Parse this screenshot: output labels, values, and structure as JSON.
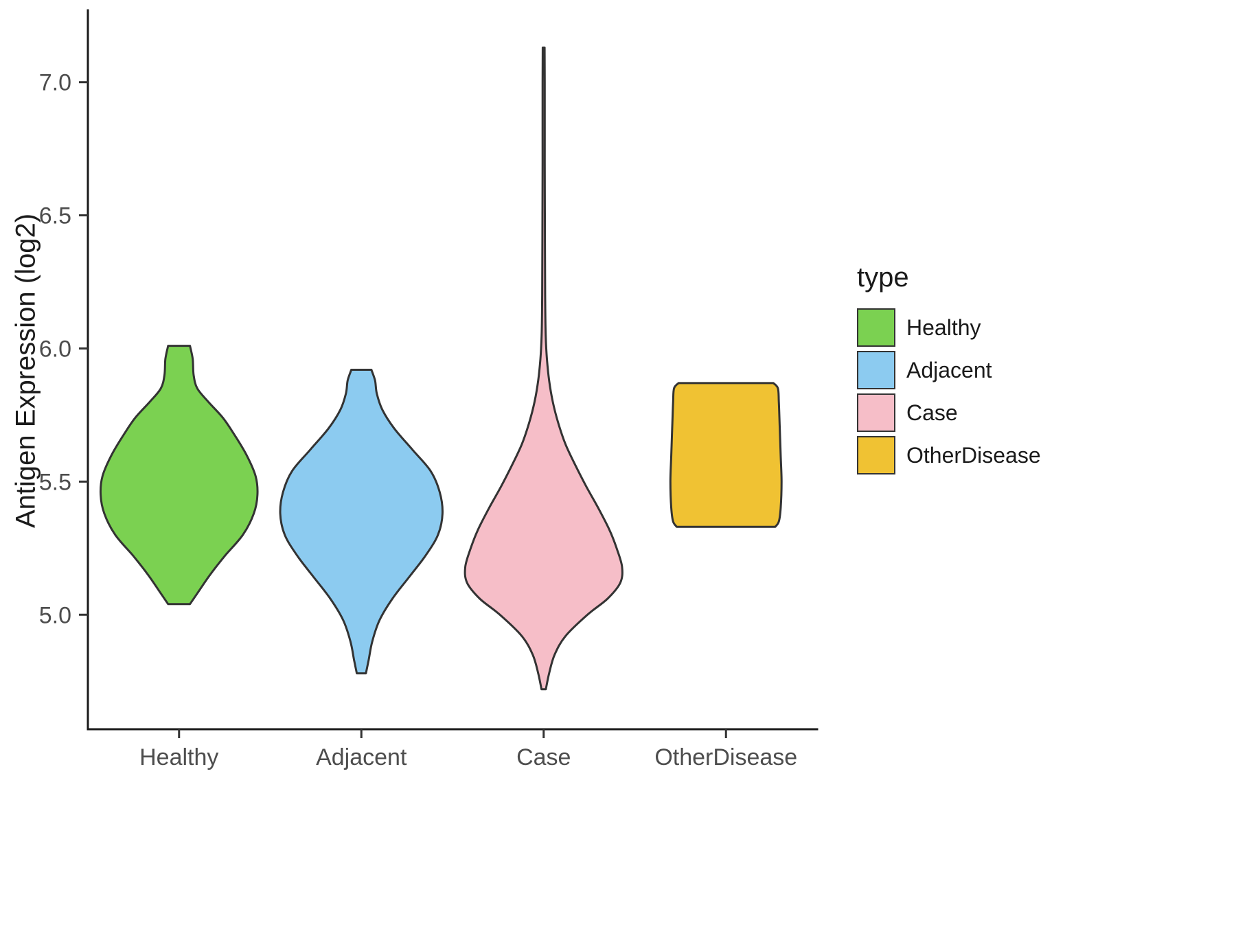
{
  "chart_data": {
    "type": "violin",
    "title": "",
    "xlabel": "",
    "ylabel": "Antigen Expression (log2)",
    "legend_title": "type",
    "legend_position": "right",
    "grid": false,
    "categories": [
      "Healthy",
      "Adjacent",
      "Case",
      "OtherDisease"
    ],
    "ylim": [
      4.57,
      7.27
    ],
    "yticks": [
      {
        "value": 5.0,
        "label": "5.0"
      },
      {
        "value": 5.5,
        "label": "5.5"
      },
      {
        "value": 6.0,
        "label": "6.0"
      },
      {
        "value": 6.5,
        "label": "6.5"
      },
      {
        "value": 7.0,
        "label": "7.0"
      }
    ],
    "style": {
      "outline_color": "#333333",
      "axis_color": "#1a1a1a",
      "tick_label_color": "#4d4d4d"
    },
    "series": [
      {
        "name": "Healthy",
        "color": "#7BD151",
        "range": [
          5.04,
          6.01
        ],
        "profile": [
          [
            5.04,
            0.06
          ],
          [
            5.08,
            0.1
          ],
          [
            5.15,
            0.17
          ],
          [
            5.22,
            0.25
          ],
          [
            5.3,
            0.35
          ],
          [
            5.38,
            0.41
          ],
          [
            5.45,
            0.43
          ],
          [
            5.52,
            0.42
          ],
          [
            5.6,
            0.37
          ],
          [
            5.68,
            0.3
          ],
          [
            5.74,
            0.24
          ],
          [
            5.8,
            0.16
          ],
          [
            5.85,
            0.1
          ],
          [
            5.9,
            0.08
          ],
          [
            5.96,
            0.075
          ],
          [
            6.01,
            0.06
          ]
        ]
      },
      {
        "name": "Adjacent",
        "color": "#8CCBF0",
        "range": [
          4.78,
          5.92
        ],
        "profile": [
          [
            4.78,
            0.025
          ],
          [
            4.83,
            0.04
          ],
          [
            4.9,
            0.06
          ],
          [
            4.98,
            0.1
          ],
          [
            5.06,
            0.17
          ],
          [
            5.14,
            0.26
          ],
          [
            5.22,
            0.35
          ],
          [
            5.3,
            0.42
          ],
          [
            5.38,
            0.445
          ],
          [
            5.46,
            0.43
          ],
          [
            5.54,
            0.38
          ],
          [
            5.62,
            0.28
          ],
          [
            5.7,
            0.18
          ],
          [
            5.77,
            0.115
          ],
          [
            5.83,
            0.085
          ],
          [
            5.88,
            0.075
          ],
          [
            5.92,
            0.055
          ]
        ]
      },
      {
        "name": "Case",
        "color": "#F6BEC8",
        "range": [
          4.72,
          7.13
        ],
        "profile": [
          [
            4.72,
            0.012
          ],
          [
            4.78,
            0.03
          ],
          [
            4.85,
            0.06
          ],
          [
            4.92,
            0.12
          ],
          [
            5.0,
            0.24
          ],
          [
            5.06,
            0.35
          ],
          [
            5.12,
            0.42
          ],
          [
            5.18,
            0.43
          ],
          [
            5.25,
            0.4
          ],
          [
            5.32,
            0.36
          ],
          [
            5.4,
            0.3
          ],
          [
            5.48,
            0.235
          ],
          [
            5.56,
            0.175
          ],
          [
            5.64,
            0.12
          ],
          [
            5.72,
            0.08
          ],
          [
            5.8,
            0.05
          ],
          [
            5.88,
            0.03
          ],
          [
            5.96,
            0.018
          ],
          [
            6.05,
            0.011
          ],
          [
            6.2,
            0.008
          ],
          [
            6.4,
            0.007
          ],
          [
            6.7,
            0.006
          ],
          [
            7.0,
            0.006
          ],
          [
            7.13,
            0.005
          ]
        ]
      },
      {
        "name": "OtherDisease",
        "color": "#F0C233",
        "range": [
          5.33,
          5.87
        ],
        "profile": [
          [
            5.33,
            0.27
          ],
          [
            5.35,
            0.29
          ],
          [
            5.4,
            0.3
          ],
          [
            5.5,
            0.305
          ],
          [
            5.6,
            0.3
          ],
          [
            5.7,
            0.295
          ],
          [
            5.8,
            0.29
          ],
          [
            5.85,
            0.285
          ],
          [
            5.87,
            0.26
          ]
        ]
      }
    ]
  }
}
